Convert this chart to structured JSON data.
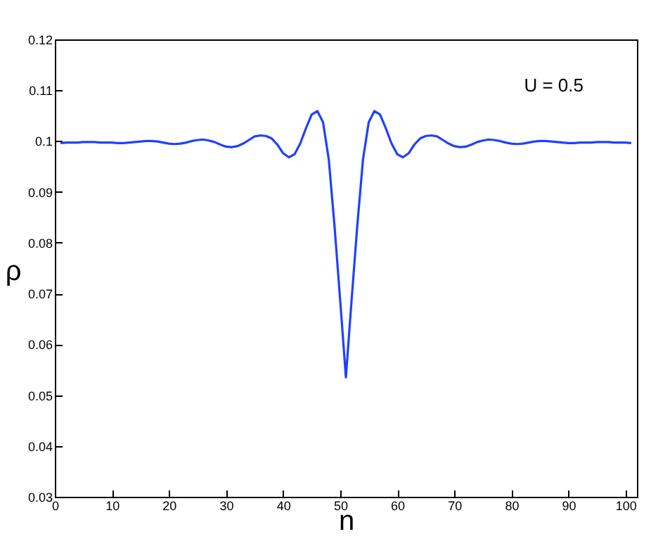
{
  "chart_data": {
    "type": "line",
    "xlabel": "n",
    "ylabel": "ρ",
    "annotations": [
      "U = 0.5"
    ],
    "x": [
      1,
      2,
      3,
      4,
      5,
      6,
      7,
      8,
      9,
      10,
      11,
      12,
      13,
      14,
      15,
      16,
      17,
      18,
      19,
      20,
      21,
      22,
      23,
      24,
      25,
      26,
      27,
      28,
      29,
      30,
      31,
      32,
      33,
      34,
      35,
      36,
      37,
      38,
      39,
      40,
      41,
      42,
      43,
      44,
      45,
      46,
      47,
      48,
      49,
      50,
      51,
      52,
      53,
      54,
      55,
      56,
      57,
      58,
      59,
      60,
      61,
      62,
      63,
      64,
      65,
      66,
      67,
      68,
      69,
      70,
      71,
      72,
      73,
      74,
      75,
      76,
      77,
      78,
      79,
      80,
      81,
      82,
      83,
      84,
      85,
      86,
      87,
      88,
      89,
      90,
      91,
      92,
      93,
      94,
      95,
      96,
      97,
      98,
      99,
      100,
      101
    ],
    "series": [
      {
        "color": "#2040ff",
        "values": [
          0.0996,
          0.0997,
          0.0997,
          0.0997,
          0.0998,
          0.0998,
          0.0998,
          0.0997,
          0.0997,
          0.0997,
          0.0996,
          0.0996,
          0.0997,
          0.0998,
          0.0999,
          0.1,
          0.1,
          0.0999,
          0.0997,
          0.0995,
          0.0994,
          0.0995,
          0.0997,
          0.1,
          0.1002,
          0.1003,
          0.1001,
          0.0998,
          0.0993,
          0.0989,
          0.0988,
          0.099,
          0.0995,
          0.1002,
          0.1009,
          0.1011,
          0.101,
          0.1005,
          0.0993,
          0.0976,
          0.0968,
          0.0974,
          0.0995,
          0.1025,
          0.1052,
          0.1059,
          0.1037,
          0.0964,
          0.0834,
          0.0687,
          0.0535,
          0.0687,
          0.0834,
          0.0964,
          0.1037,
          0.1059,
          0.1052,
          0.1025,
          0.0995,
          0.0974,
          0.0968,
          0.0976,
          0.0993,
          0.1005,
          0.101,
          0.1011,
          0.1009,
          0.1002,
          0.0995,
          0.099,
          0.0988,
          0.0989,
          0.0993,
          0.0998,
          0.1001,
          0.1003,
          0.1002,
          0.1,
          0.0997,
          0.0995,
          0.0994,
          0.0995,
          0.0997,
          0.0999,
          0.1,
          0.1,
          0.0999,
          0.0998,
          0.0997,
          0.0996,
          0.0996,
          0.0997,
          0.0997,
          0.0997,
          0.0998,
          0.0998,
          0.0998,
          0.0997,
          0.0997,
          0.0997,
          0.0996
        ]
      }
    ],
    "xlim": [
      0,
      102
    ],
    "xticks": [
      0,
      10,
      20,
      30,
      40,
      50,
      60,
      70,
      80,
      90,
      100
    ],
    "ylim": [
      0.03,
      0.12
    ],
    "yticks": [
      0.03,
      0.04,
      0.05,
      0.06,
      0.07,
      0.08,
      0.09,
      0.1,
      0.11,
      0.12
    ],
    "marker": "none",
    "line_style": "solid"
  }
}
